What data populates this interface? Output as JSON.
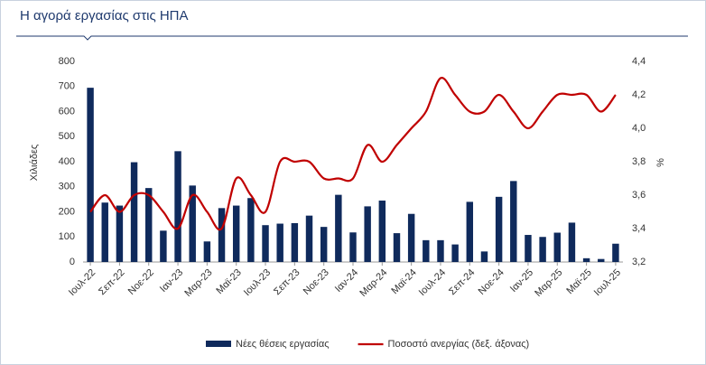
{
  "chart_data": {
    "type": "bar-line",
    "title": "Η αγορά εργασίας στις ΗΠΑ",
    "ylabel": "Χιλιάδες",
    "y2label": "%",
    "categories": [
      "Ιουλ-22",
      null,
      "Σεπ-22",
      null,
      "Νοε-22",
      null,
      "Ιαν-23",
      null,
      "Μαρ-23",
      null,
      "Μαϊ-23",
      null,
      "Ιουλ-23",
      null,
      "Σεπ-23",
      null,
      "Νοε-23",
      null,
      "Ιαν-24",
      null,
      "Μαρ-24",
      null,
      "Μαϊ-24",
      null,
      "Ιουλ-24",
      null,
      "Σεπ-24",
      null,
      "Νοε-24",
      null,
      "Ιαν-25",
      null,
      "Μαρ-25",
      null,
      "Μαϊ-25",
      null,
      "Ιουλ-25"
    ],
    "series": [
      {
        "name": "Νέες θέσεις εργασίας",
        "color": "#0f2a5c",
        "type": "bar",
        "values": [
          695,
          237,
          225,
          398,
          295,
          125,
          442,
          305,
          82,
          215,
          225,
          255,
          147,
          153,
          155,
          185,
          140,
          268,
          118,
          222,
          245,
          115,
          192,
          87,
          87,
          70,
          240,
          42,
          260,
          323,
          108,
          100,
          117,
          157,
          15,
          12,
          73
        ]
      },
      {
        "name": "Ποσοστό ανεργίας (δεξ. άξονας)",
        "color": "#c00000",
        "type": "line",
        "axis": "y2",
        "values": [
          3.5,
          3.6,
          3.5,
          3.6,
          3.6,
          3.5,
          3.4,
          3.6,
          3.5,
          3.4,
          3.7,
          3.6,
          3.5,
          3.8,
          3.8,
          3.8,
          3.7,
          3.7,
          3.7,
          3.9,
          3.8,
          3.9,
          4.0,
          4.1,
          4.3,
          4.2,
          4.1,
          4.1,
          4.2,
          4.1,
          4.0,
          4.1,
          4.2,
          4.2,
          4.2,
          4.1,
          4.2
        ]
      }
    ],
    "ylim": [
      0,
      800
    ],
    "yticks": [
      0,
      100,
      200,
      300,
      400,
      500,
      600,
      700,
      800
    ],
    "y2lim": [
      3.2,
      4.4
    ],
    "y2ticks": [
      {
        "value": 3.2,
        "label": "3,2"
      },
      {
        "value": 3.4,
        "label": "3,4"
      },
      {
        "value": 3.6,
        "label": "3,6"
      },
      {
        "value": 3.8,
        "label": "3,8"
      },
      {
        "value": 4.0,
        "label": "4,0"
      },
      {
        "value": 4.2,
        "label": "4,2"
      },
      {
        "value": 4.4,
        "label": "4,4"
      }
    ],
    "grid": false,
    "legend": "bottom"
  }
}
